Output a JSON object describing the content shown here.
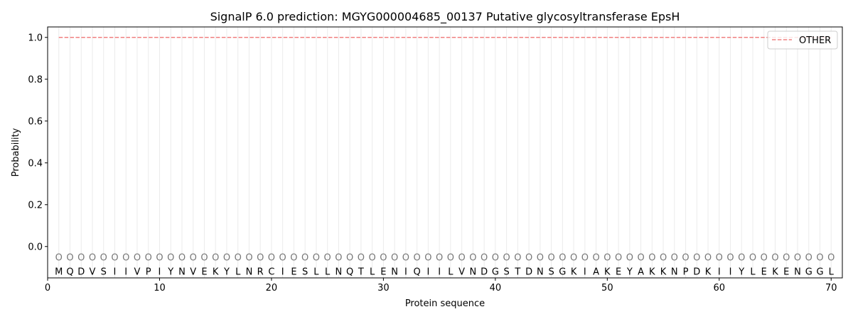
{
  "chart_data": {
    "type": "line",
    "title": "SignalP 6.0 prediction: MGYG000004685_00137 Putative glycosyltransferase EpsH",
    "xlabel": "Protein sequence",
    "ylabel": "Probability",
    "xlim": [
      0,
      71
    ],
    "ylim": [
      -0.15,
      1.05
    ],
    "xticks": [
      0,
      10,
      20,
      30,
      40,
      50,
      60,
      70
    ],
    "yticks": [
      0.0,
      0.2,
      0.4,
      0.6,
      0.8,
      1.0
    ],
    "ytick_labels": [
      "0.0",
      "0.2",
      "0.4",
      "0.6",
      "0.8",
      "1.0"
    ],
    "grid": "vertical per residue",
    "legend_position": "top-right",
    "sequence": [
      "M",
      "Q",
      "D",
      "V",
      "S",
      "I",
      "I",
      "V",
      "P",
      "I",
      "Y",
      "N",
      "V",
      "E",
      "K",
      "Y",
      "L",
      "N",
      "R",
      "C",
      "I",
      "E",
      "S",
      "L",
      "L",
      "N",
      "Q",
      "T",
      "L",
      "E",
      "N",
      "I",
      "Q",
      "I",
      "I",
      "L",
      "V",
      "N",
      "D",
      "G",
      "S",
      "T",
      "D",
      "N",
      "S",
      "G",
      "K",
      "I",
      "A",
      "K",
      "E",
      "Y",
      "A",
      "K",
      "K",
      "N",
      "P",
      "D",
      "K",
      "I",
      "I",
      "Y",
      "L",
      "E",
      "K",
      "E",
      "N",
      "G",
      "G",
      "L"
    ],
    "region_label": "O",
    "series": [
      {
        "name": "OTHER",
        "color": "#f08080",
        "style": "dashed",
        "x_start": 1,
        "x_end": 70,
        "value": 1.0
      }
    ]
  }
}
